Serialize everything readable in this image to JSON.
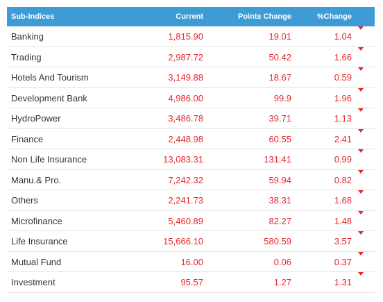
{
  "table": {
    "header": [
      "Sub-Indices",
      "Current",
      "Points Change",
      "%Change"
    ],
    "rows": [
      [
        "Banking",
        "1,815.90",
        "19.01",
        "1.04"
      ],
      [
        "Trading",
        "2,987.72",
        "50.42",
        "1.66"
      ],
      [
        "Hotels And Tourism",
        "3,149.88",
        "18.67",
        "0.59"
      ],
      [
        "Development Bank",
        "4,986.00",
        "99.9",
        "1.96"
      ],
      [
        "HydroPower",
        "3,486.78",
        "39.71",
        "1.13"
      ],
      [
        "Finance",
        "2,448.98",
        "60.55",
        "2.41"
      ],
      [
        "Non Life Insurance",
        "13,083.31",
        "131.41",
        "0.99"
      ],
      [
        "Manu.& Pro.",
        "7,242.32",
        "59.94",
        "0.82"
      ],
      [
        "Others",
        "2,241.73",
        "38.31",
        "1.68"
      ],
      [
        "Microfinance",
        "5,460.89",
        "82.27",
        "1.48"
      ],
      [
        "Life Insurance",
        "15,666.10",
        "580.59",
        "3.57"
      ],
      [
        "Mutual Fund",
        "16.00",
        "0.06",
        "0.37"
      ],
      [
        "Investment",
        "95.57",
        "1.27",
        "1.31"
      ]
    ]
  }
}
